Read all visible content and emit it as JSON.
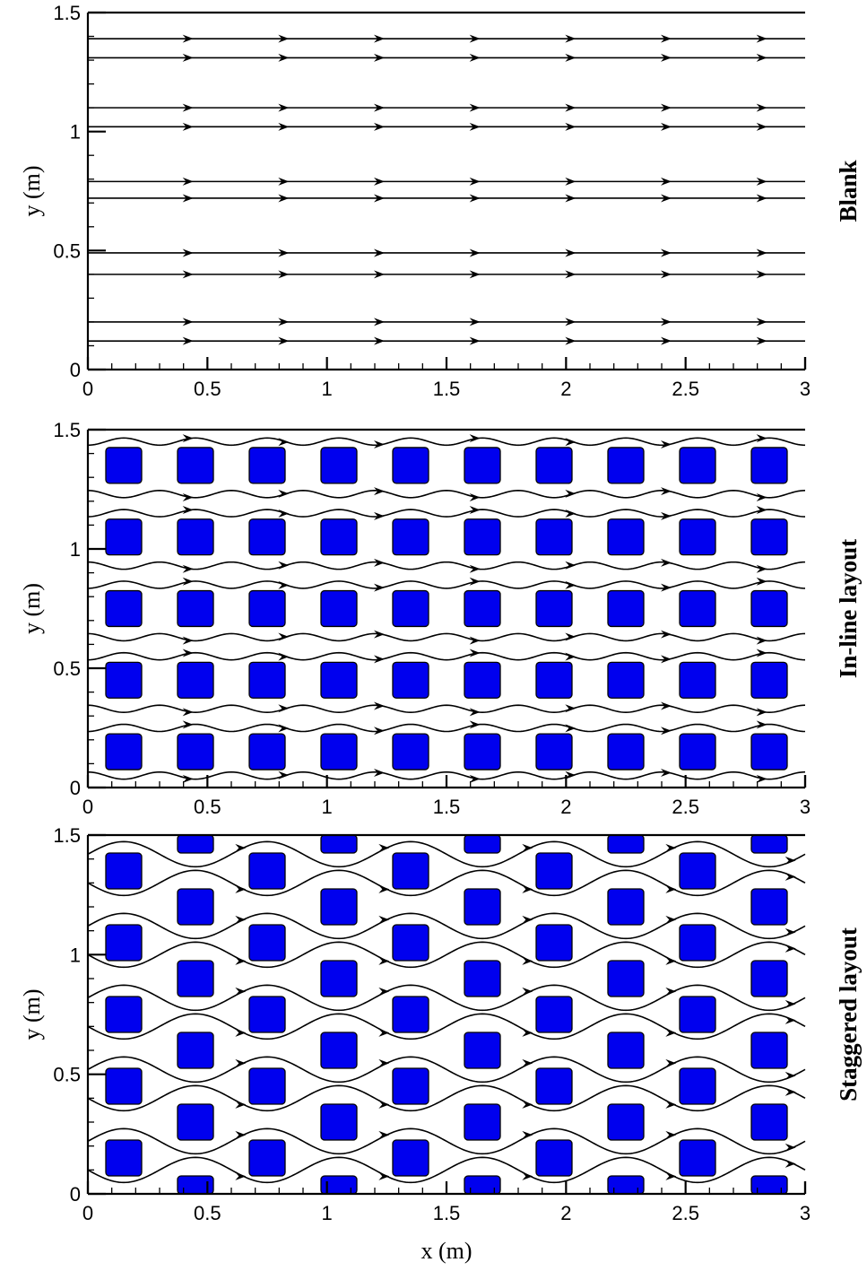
{
  "chart_data": [
    {
      "type": "streamline",
      "panel": "Blank",
      "side_label": "Blank",
      "xlabel": "",
      "ylabel": "y (m)",
      "xlim": [
        0,
        3
      ],
      "ylim": [
        0,
        1.5
      ],
      "x_ticks": [
        "0",
        "0.5",
        "1",
        "1.5",
        "2",
        "2.5",
        "3"
      ],
      "y_ticks": [
        "0",
        "0.5",
        "1",
        "1.5"
      ],
      "streamlines_y": [
        0.12,
        0.2,
        0.4,
        0.49,
        0.72,
        0.79,
        1.02,
        1.1,
        1.31,
        1.39
      ],
      "top_boundary_y": 1.5,
      "arrow_x": [
        0.43,
        0.83,
        1.23,
        1.63,
        2.03,
        2.43,
        2.83
      ],
      "blocks": []
    },
    {
      "type": "streamline",
      "panel": "In-line layout",
      "side_label": "In-line layout",
      "xlabel": "",
      "ylabel": "y (m)",
      "xlim": [
        0,
        3
      ],
      "ylim": [
        0,
        1.5
      ],
      "x_ticks": [
        "0",
        "0.5",
        "1",
        "1.5",
        "2",
        "2.5",
        "3"
      ],
      "y_ticks": [
        "0",
        "0.5",
        "1",
        "1.5"
      ],
      "block_size": 0.15,
      "block_x_centers": [
        0.15,
        0.45,
        0.75,
        1.05,
        1.35,
        1.65,
        1.95,
        2.25,
        2.55,
        2.85
      ],
      "block_y_centers": [
        0.15,
        0.45,
        0.75,
        1.05,
        1.35
      ],
      "streamlines_y": [
        0.05,
        0.25,
        0.33,
        0.55,
        0.63,
        0.85,
        0.93,
        1.15,
        1.23,
        1.45
      ],
      "top_boundary_y": 1.5,
      "arrow_x": [
        0.43,
        0.83,
        1.23,
        1.63,
        2.03,
        2.43,
        2.83
      ]
    },
    {
      "type": "streamline",
      "panel": "Staggered layout",
      "side_label": "Staggered layout",
      "xlabel": "x (m)",
      "ylabel": "y (m)",
      "xlim": [
        0,
        3
      ],
      "ylim": [
        0,
        1.5
      ],
      "x_ticks": [
        "0",
        "0.5",
        "1",
        "1.5",
        "2",
        "2.5",
        "3"
      ],
      "y_ticks": [
        "0",
        "0.5",
        "1",
        "1.5"
      ],
      "block_size": 0.15,
      "block_x_centers_odd": [
        0.15,
        0.75,
        1.35,
        1.95,
        2.55
      ],
      "block_y_centers_odd": [
        0.15,
        0.45,
        0.75,
        1.05,
        1.35
      ],
      "block_x_centers_even": [
        0.45,
        1.05,
        1.65,
        2.25,
        2.85
      ],
      "block_y_centers_even": [
        0.0,
        0.3,
        0.6,
        0.9,
        1.2,
        1.5
      ],
      "streamlines_y": [
        0.1,
        0.22,
        0.4,
        0.52,
        0.7,
        0.82,
        1.0,
        1.12,
        1.3,
        1.42
      ],
      "top_boundary_y": 1.5,
      "arrow_x": [
        0.65,
        1.25,
        1.85,
        2.45,
        2.95
      ]
    }
  ]
}
